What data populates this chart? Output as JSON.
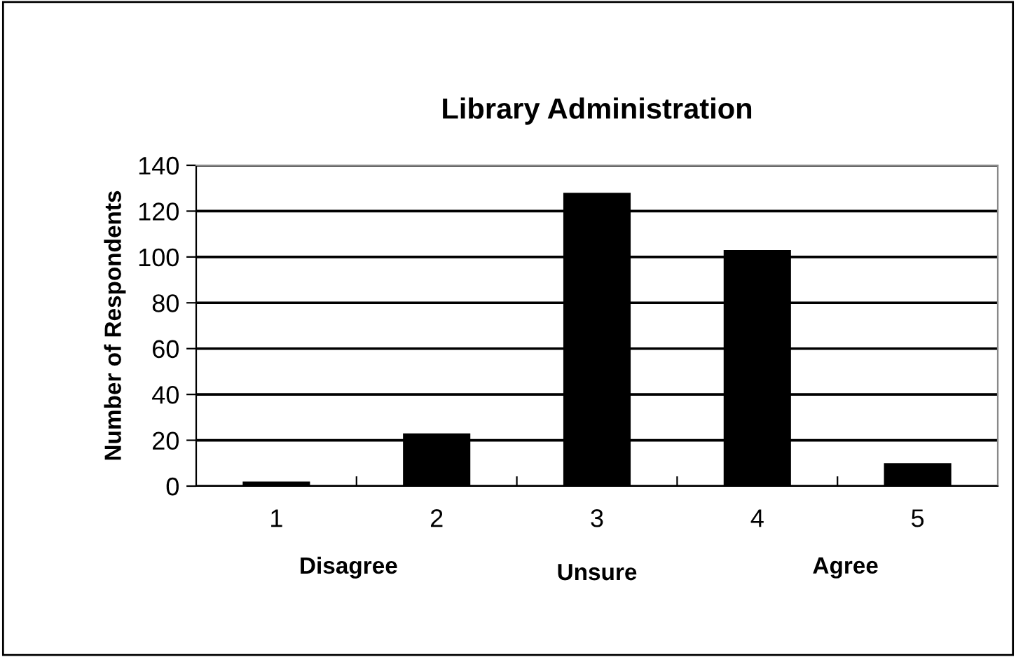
{
  "chart_data": {
    "type": "bar",
    "title": "Library Administration",
    "ylabel": "Number of Respondents",
    "categories": [
      "1",
      "2",
      "3",
      "4",
      "5"
    ],
    "values": [
      2,
      23,
      128,
      103,
      10
    ],
    "color": "#000000",
    "ylim": [
      0,
      140
    ],
    "yticks": [
      0,
      20,
      40,
      60,
      80,
      100,
      120,
      140
    ],
    "grid": "y",
    "annotations": [
      "Disagree",
      "Unsure",
      "Agree"
    ]
  }
}
